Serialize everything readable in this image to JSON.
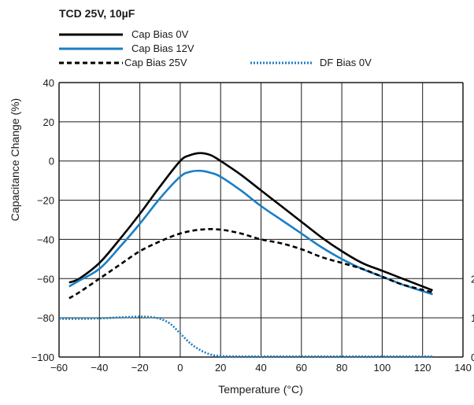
{
  "chart_data": {
    "type": "line",
    "title": "TCD 25V, 10µF",
    "xlabel": "Temperature (°C)",
    "ylabel": "Capacitance Change (%)",
    "xlim": [
      -60,
      140
    ],
    "ylim": [
      -100,
      40
    ],
    "x_ticks": [
      -60,
      -40,
      -20,
      0,
      20,
      40,
      60,
      80,
      100,
      120,
      140
    ],
    "x_tick_labels": [
      "−60",
      "−40",
      "−20",
      "0",
      "20",
      "40",
      "60",
      "80",
      "100",
      "120",
      "140"
    ],
    "y_ticks": [
      40,
      20,
      0,
      -20,
      -40,
      -60,
      -80,
      -100
    ],
    "y_tick_labels": [
      "40",
      "20",
      "0",
      "−20",
      "−40",
      "−60",
      "−80",
      "−100"
    ],
    "right_axis_partial_labels": [
      "2",
      "1",
      "0"
    ],
    "grid": true,
    "legend_position": "top",
    "colors": {
      "black": "#000000",
      "blue": "#1a7ec6"
    },
    "series": [
      {
        "name": "Cap Bias 0V",
        "color": "#000000",
        "style": "solid",
        "x": [
          -55,
          -50,
          -40,
          -30,
          -20,
          -10,
          0,
          5,
          10,
          15,
          20,
          30,
          40,
          50,
          60,
          70,
          80,
          90,
          100,
          110,
          125
        ],
        "y": [
          -62,
          -60,
          -52,
          -40,
          -27,
          -13,
          0,
          3,
          4,
          3,
          0,
          -7,
          -15,
          -23,
          -31,
          -39,
          -46,
          -52,
          -56,
          -60,
          -66
        ]
      },
      {
        "name": "Cap Bias 12V",
        "color": "#1a7ec6",
        "style": "solid",
        "x": [
          -55,
          -50,
          -40,
          -30,
          -20,
          -10,
          0,
          5,
          10,
          15,
          20,
          30,
          40,
          50,
          60,
          70,
          80,
          90,
          100,
          110,
          125
        ],
        "y": [
          -64,
          -61,
          -55,
          -44,
          -32,
          -19,
          -8,
          -5.5,
          -5,
          -6,
          -8,
          -15,
          -23,
          -30,
          -37,
          -44,
          -50,
          -55,
          -59,
          -63,
          -68
        ]
      },
      {
        "name": "Cap Bias 25V",
        "color": "#000000",
        "style": "dashed",
        "x": [
          -55,
          -50,
          -40,
          -30,
          -20,
          -10,
          0,
          10,
          20,
          30,
          40,
          50,
          60,
          70,
          80,
          90,
          100,
          110,
          125
        ],
        "y": [
          -70,
          -67,
          -60,
          -53,
          -46,
          -41,
          -37,
          -35,
          -35,
          -37,
          -40,
          -42,
          -45,
          -49,
          -52,
          -55,
          -59,
          -63,
          -67
        ]
      },
      {
        "name": "DF Bias 0V",
        "color": "#1a7ec6",
        "style": "dotted",
        "x": [
          -60,
          -50,
          -40,
          -30,
          -20,
          -15,
          -10,
          -5,
          0,
          5,
          10,
          15,
          20,
          30,
          40,
          60,
          80,
          100,
          125
        ],
        "y": [
          -80.5,
          -80.5,
          -80.3,
          -79.8,
          -79.4,
          -79.6,
          -80.5,
          -83,
          -88,
          -93,
          -96.5,
          -98.7,
          -99.5,
          -99.7,
          -99.7,
          -99.7,
          -99.7,
          -99.7,
          -99.7
        ]
      }
    ]
  }
}
